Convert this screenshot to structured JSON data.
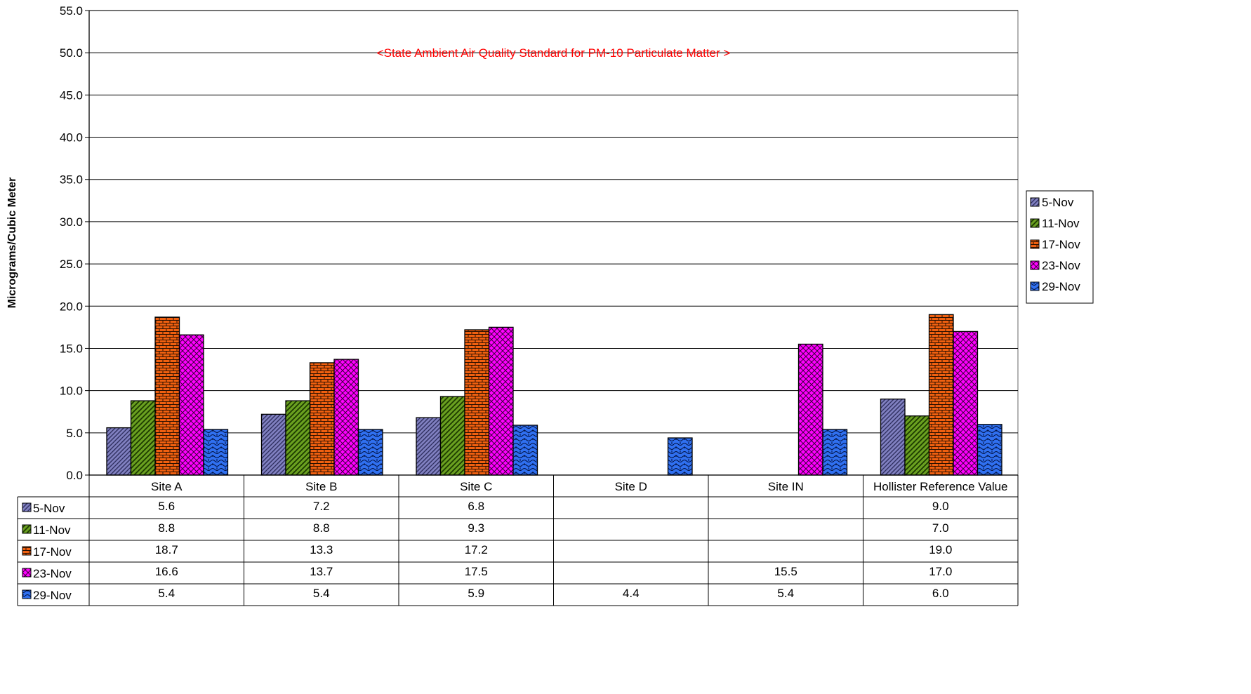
{
  "chart_data": {
    "type": "bar",
    "title": "",
    "xlabel": "",
    "ylabel": "Micrograms/Cubic Meter",
    "ylim": [
      0,
      55
    ],
    "yticks": [
      "0.0",
      "5.0",
      "10.0",
      "15.0",
      "20.0",
      "25.0",
      "30.0",
      "35.0",
      "40.0",
      "45.0",
      "50.0",
      "55.0"
    ],
    "grid": true,
    "legend_position": "right",
    "categories": [
      "Site A",
      "Site B",
      "Site C",
      "Site D",
      "Site IN",
      "Hollister Reference Value"
    ],
    "series": [
      {
        "name": "5-Nov",
        "values": [
          5.6,
          7.2,
          6.8,
          null,
          null,
          9.0
        ],
        "labels": [
          "5.6",
          "7.2",
          "6.8",
          "",
          "",
          "9.0"
        ],
        "color": "#8080c0",
        "pattern": "diagonal"
      },
      {
        "name": "11-Nov",
        "values": [
          8.8,
          8.8,
          9.3,
          null,
          null,
          7.0
        ],
        "labels": [
          "8.8",
          "8.8",
          "9.3",
          "",
          "",
          "7.0"
        ],
        "color": "#6aa020",
        "pattern": "diagonal"
      },
      {
        "name": "17-Nov",
        "values": [
          18.7,
          13.3,
          17.2,
          null,
          null,
          19.0
        ],
        "labels": [
          "18.7",
          "13.3",
          "17.2",
          "",
          "",
          "19.0"
        ],
        "color": "#f06010",
        "pattern": "brick"
      },
      {
        "name": "23-Nov",
        "values": [
          16.6,
          13.7,
          17.5,
          null,
          15.5,
          17.0
        ],
        "labels": [
          "16.6",
          "13.7",
          "17.5",
          "",
          "15.5",
          "17.0"
        ],
        "color": "#ff00ff",
        "pattern": "crosshatch"
      },
      {
        "name": "29-Nov",
        "values": [
          5.4,
          5.4,
          5.9,
          4.4,
          5.4,
          6.0
        ],
        "labels": [
          "5.4",
          "5.4",
          "5.9",
          "4.4",
          "5.4",
          "6.0"
        ],
        "color": "#3070f0",
        "pattern": "wave"
      }
    ],
    "annotations": [
      {
        "text": "<State Ambient Air Quality Standard for PM-10 Particulate Matter >",
        "y": 50,
        "color": "#ff0000"
      }
    ]
  }
}
